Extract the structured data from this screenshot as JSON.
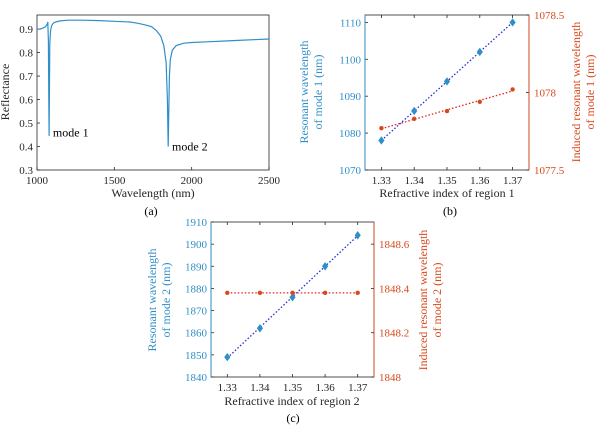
{
  "colors": {
    "blue": "#2f8fc8",
    "orange": "#d9481c",
    "axis": "#262626",
    "fit_blue": "#1f2fd6",
    "fit_red": "#e0221b"
  },
  "panels": {
    "a": {
      "label": "(a)"
    },
    "b": {
      "label": "(b)"
    },
    "c": {
      "label": "(c)"
    }
  },
  "chart_data": [
    {
      "id": "a",
      "type": "line",
      "xlabel": "Wavelength (nm)",
      "ylabel": "Reflectance",
      "xlim": [
        1000,
        2500
      ],
      "ylim": [
        0.3,
        0.96
      ],
      "xticks": [
        1000,
        1500,
        2000,
        2500
      ],
      "xtick_labels": [
        "1000",
        "1500",
        "2000",
        "2500"
      ],
      "yticks": [
        0.3,
        0.4,
        0.5,
        0.6,
        0.7,
        0.8,
        0.9
      ],
      "ytick_labels": [
        "0.3",
        "0.4",
        "0.5",
        "0.6",
        "0.7",
        "0.8",
        "0.9"
      ],
      "series": [
        {
          "x": [
            1000,
            1020,
            1040,
            1055,
            1065,
            1070,
            1074,
            1076,
            1078,
            1080,
            1083,
            1088,
            1095,
            1105,
            1120,
            1150,
            1200,
            1300,
            1400,
            1500,
            1600,
            1650,
            1700,
            1740,
            1770,
            1800,
            1820,
            1835,
            1843,
            1848,
            1852,
            1856,
            1862,
            1875,
            1900,
            1950,
            2000,
            2100,
            2200,
            2300,
            2400,
            2500
          ],
          "y": [
            0.9,
            0.9,
            0.905,
            0.91,
            0.92,
            0.93,
            0.85,
            0.6,
            0.445,
            0.62,
            0.84,
            0.895,
            0.915,
            0.925,
            0.93,
            0.935,
            0.938,
            0.938,
            0.936,
            0.933,
            0.93,
            0.925,
            0.918,
            0.91,
            0.895,
            0.87,
            0.83,
            0.76,
            0.6,
            0.4,
            0.55,
            0.7,
            0.77,
            0.81,
            0.83,
            0.84,
            0.843,
            0.846,
            0.849,
            0.852,
            0.855,
            0.858
          ]
        }
      ],
      "annotations": [
        {
          "text": "mode 1",
          "x": 1090,
          "y": 0.46
        },
        {
          "text": "mode 2",
          "x": 1860,
          "y": 0.4
        }
      ]
    },
    {
      "id": "b",
      "type": "scatter",
      "xlabel": "Refractive index of region 1",
      "ylabel": [
        "Resonant wavelength",
        "of mode 1 (nm)"
      ],
      "ylabel_right": [
        "Induced resonant wavelength",
        "of mode 1 (nm)"
      ],
      "xlim": [
        1.325,
        1.375
      ],
      "ylim": [
        1070,
        1112
      ],
      "ylim_right": [
        1077.5,
        1078.5
      ],
      "xticks": [
        1.33,
        1.34,
        1.35,
        1.36,
        1.37
      ],
      "xtick_labels": [
        "1.33",
        "1.34",
        "1.35",
        "1.36",
        "1.37"
      ],
      "yticks": [
        1070,
        1080,
        1090,
        1100,
        1110
      ],
      "ytick_labels": [
        "1070",
        "1080",
        "1090",
        "1100",
        "1110"
      ],
      "yticks_right": [
        1077.5,
        1078,
        1078.5
      ],
      "ytick_labels_right": [
        "1077.5",
        "1078",
        "1078.5"
      ],
      "series": [
        {
          "axis": "left",
          "color": "blue",
          "marker": "diamond",
          "x": [
            1.33,
            1.34,
            1.35,
            1.36,
            1.37
          ],
          "y": [
            1078,
            1086,
            1094,
            1102,
            1110
          ]
        },
        {
          "axis": "right",
          "color": "orange",
          "marker": "dot",
          "x": [
            1.33,
            1.34,
            1.35,
            1.36,
            1.37
          ],
          "y": [
            1077.77,
            1077.83,
            1077.88,
            1077.94,
            1078.02
          ]
        }
      ]
    },
    {
      "id": "c",
      "type": "scatter",
      "xlabel": "Refractive index of region 2",
      "ylabel": [
        "Resonant wavelength",
        "of mode 2 (nm)"
      ],
      "ylabel_right": [
        "Induced resonant wavelength",
        "of mode 2 (nm)"
      ],
      "xlim": [
        1.325,
        1.375
      ],
      "ylim": [
        1840,
        1910
      ],
      "ylim_right": [
        1848,
        1848.7
      ],
      "xticks": [
        1.33,
        1.34,
        1.35,
        1.36,
        1.37
      ],
      "xtick_labels": [
        "1.33",
        "1.34",
        "1.35",
        "1.36",
        "1.37"
      ],
      "yticks": [
        1840,
        1850,
        1860,
        1870,
        1880,
        1890,
        1900,
        1910
      ],
      "ytick_labels": [
        "1840",
        "1850",
        "1860",
        "1870",
        "1880",
        "1890",
        "1900",
        "1910"
      ],
      "yticks_right": [
        1848,
        1848.2,
        1848.4,
        1848.6
      ],
      "ytick_labels_right": [
        "1848",
        "1848.2",
        "1848.4",
        "1848.6"
      ],
      "series": [
        {
          "axis": "left",
          "color": "blue",
          "marker": "diamond",
          "x": [
            1.33,
            1.34,
            1.35,
            1.36,
            1.37
          ],
          "y": [
            1849,
            1862,
            1876,
            1890,
            1904
          ]
        },
        {
          "axis": "right",
          "color": "orange",
          "marker": "dot",
          "x": [
            1.33,
            1.34,
            1.35,
            1.36,
            1.37
          ],
          "y": [
            1848.38,
            1848.38,
            1848.38,
            1848.38,
            1848.38
          ]
        }
      ]
    }
  ]
}
